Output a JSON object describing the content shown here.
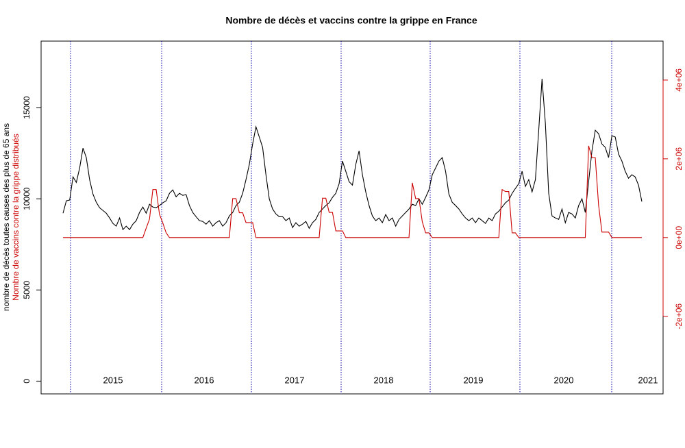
{
  "chart_data": {
    "type": "line",
    "title": "Nombre de décès et vaccins contre la grippe en France",
    "y_label": "nombre de décès toutes causes des plus de 65 ans",
    "y2_label": "Nombre de vaccins contre la grippe distribués",
    "year_labels": [
      "2015",
      "2016",
      "2017",
      "2018",
      "2019",
      "2020",
      "2021"
    ],
    "ylim": [
      -700,
      18650
    ],
    "yticks": [
      0,
      5000,
      10000,
      15000
    ],
    "y2lim": [
      -3970000,
      4990000
    ],
    "y2ticks": [
      {
        "value": -2000000,
        "label": "-2e+06"
      },
      {
        "value": 0,
        "label": "0e+00"
      },
      {
        "value": 2000000,
        "label": "2e+06"
      },
      {
        "value": 4000000,
        "label": "4e+06"
      }
    ],
    "series": [
      {
        "color": "#000000",
        "values": [
          9210,
          9890,
          9930,
          11200,
          10900,
          11690,
          12780,
          12260,
          11050,
          10260,
          9810,
          9510,
          9360,
          9210,
          8950,
          8650,
          8500,
          8950,
          8310,
          8500,
          8310,
          8610,
          8800,
          9250,
          9550,
          9210,
          9700,
          9550,
          9510,
          9630,
          9780,
          9890,
          10300,
          10490,
          10110,
          10300,
          10190,
          10230,
          9630,
          9250,
          9020,
          8800,
          8760,
          8610,
          8800,
          8500,
          8690,
          8800,
          8500,
          8690,
          9060,
          9250,
          9630,
          9810,
          10300,
          11050,
          11880,
          13010,
          13950,
          13390,
          12820,
          11320,
          10000,
          9440,
          9170,
          9020,
          9020,
          8800,
          8950,
          8420,
          8690,
          8500,
          8610,
          8760,
          8380,
          8690,
          8870,
          9250,
          9440,
          9630,
          9780,
          10080,
          10300,
          10830,
          12070,
          11510,
          10940,
          10750,
          11880,
          12630,
          11320,
          10380,
          9630,
          9060,
          8800,
          8950,
          8690,
          9140,
          8800,
          8950,
          8500,
          8870,
          9060,
          9250,
          9440,
          9700,
          9630,
          10000,
          9700,
          10080,
          10490,
          11320,
          11690,
          12070,
          12260,
          11510,
          10260,
          9810,
          9630,
          9440,
          9170,
          8950,
          8800,
          8950,
          8690,
          8950,
          8800,
          8650,
          8950,
          8800,
          9170,
          9320,
          9550,
          9780,
          9930,
          10300,
          10570,
          10830,
          11510,
          10680,
          11050,
          10380,
          11050,
          13760,
          16580,
          14140,
          10300,
          9060,
          8950,
          8870,
          9440,
          8690,
          9250,
          9170,
          8950,
          9630,
          10000,
          9250,
          10940,
          12630,
          13760,
          13570,
          13010,
          12820,
          12260,
          13460,
          13390,
          12450,
          12070,
          11510,
          11130,
          11320,
          11200,
          10750,
          9850
        ]
      },
      {
        "color": "#cc0000",
        "axis": "y2",
        "values": [
          0,
          0,
          0,
          0,
          0,
          0,
          0,
          0,
          0,
          0,
          0,
          0,
          0,
          0,
          0,
          0,
          0,
          0,
          0,
          0,
          0,
          0,
          0,
          0,
          0,
          240000,
          470000,
          1220000,
          1220000,
          590000,
          370000,
          120000,
          0,
          0,
          0,
          0,
          0,
          0,
          0,
          0,
          0,
          0,
          0,
          0,
          0,
          0,
          0,
          0,
          0,
          0,
          0,
          990000,
          990000,
          630000,
          630000,
          380000,
          380000,
          380000,
          0,
          0,
          0,
          0,
          0,
          0,
          0,
          0,
          0,
          0,
          0,
          0,
          0,
          0,
          0,
          0,
          0,
          0,
          0,
          0,
          1000000,
          1000000,
          640000,
          640000,
          170000,
          170000,
          170000,
          0,
          0,
          0,
          0,
          0,
          0,
          0,
          0,
          0,
          0,
          0,
          0,
          0,
          0,
          0,
          0,
          0,
          0,
          0,
          0,
          1390000,
          990000,
          990000,
          400000,
          120000,
          120000,
          0,
          0,
          0,
          0,
          0,
          0,
          0,
          0,
          0,
          0,
          0,
          0,
          0,
          0,
          0,
          0,
          0,
          0,
          0,
          0,
          0,
          1220000,
          1170000,
          1170000,
          120000,
          120000,
          0,
          0,
          0,
          0,
          0,
          0,
          0,
          0,
          0,
          0,
          0,
          0,
          0,
          0,
          0,
          0,
          0,
          0,
          0,
          0,
          0,
          2330000,
          2030000,
          2030000,
          820000,
          140000,
          140000,
          140000,
          0,
          0,
          0,
          0,
          0,
          0,
          0,
          0,
          0,
          0
        ]
      }
    ]
  }
}
